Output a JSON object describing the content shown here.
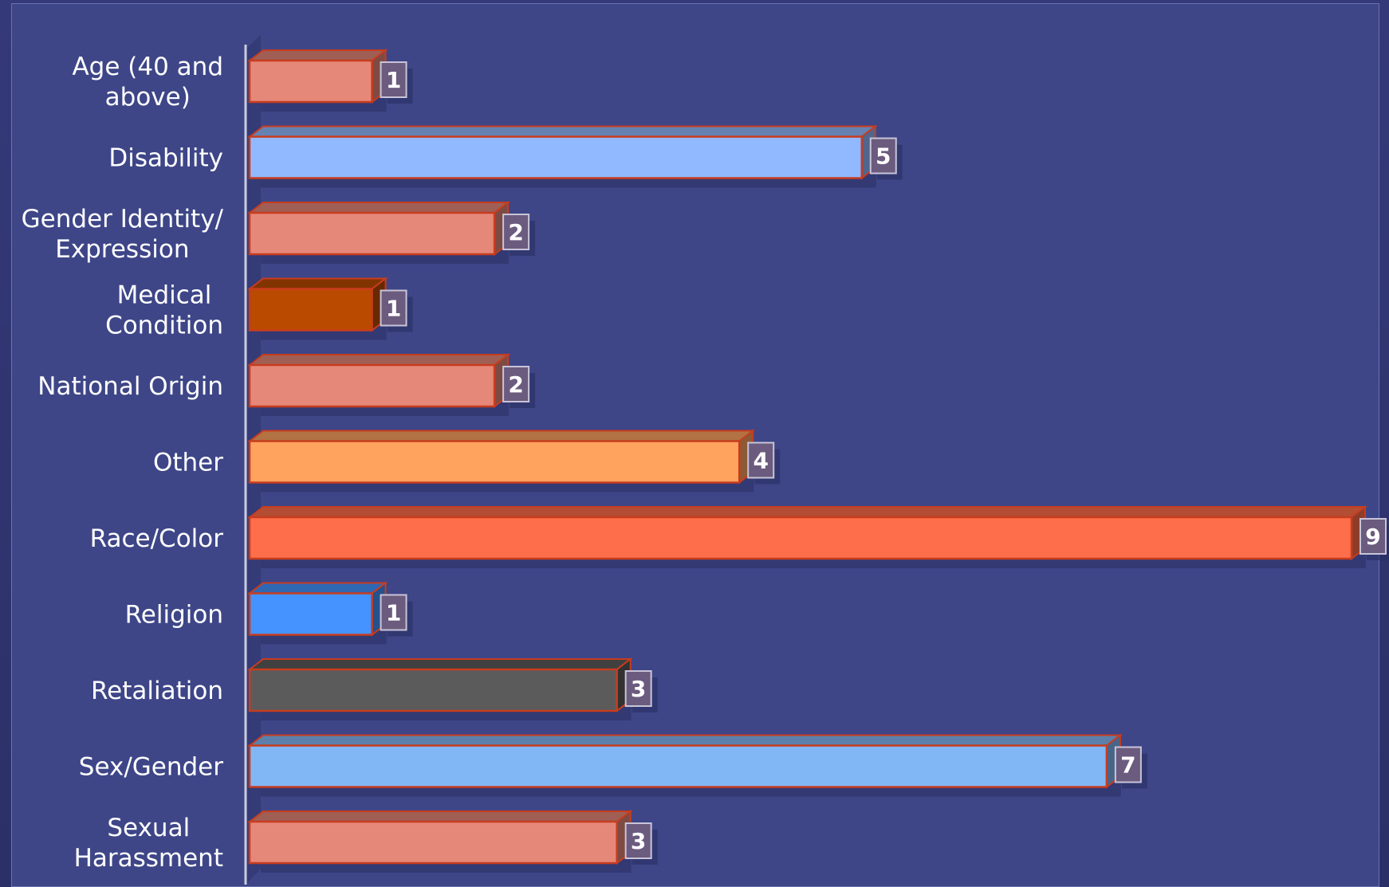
{
  "chart_data": {
    "type": "bar",
    "orientation": "horizontal",
    "style": "3d",
    "categories": [
      "Age (40 and above)",
      "Disability",
      "Gender Identity/ Expression",
      "Medical Condition",
      "National Origin",
      "Other",
      "Race/Color",
      "Religion",
      "Retaliation",
      "Sex/Gender",
      "Sexual Harassment"
    ],
    "category_lines": [
      [
        "Age (40 and",
        "above)"
      ],
      [
        "Disability"
      ],
      [
        "Gender Identity/",
        "Expression"
      ],
      [
        "Medical",
        "Condition"
      ],
      [
        "National Origin"
      ],
      [
        "Other"
      ],
      [
        "Race/Color"
      ],
      [
        "Religion"
      ],
      [
        "Retaliation"
      ],
      [
        "Sex/Gender"
      ],
      [
        "Sexual",
        "Harassment"
      ]
    ],
    "values": [
      1,
      5,
      2,
      1,
      2,
      4,
      9,
      1,
      3,
      7,
      3
    ],
    "value_labels": [
      "1",
      "5",
      "2",
      "1",
      "2",
      "4",
      "9",
      "1",
      "3",
      "7",
      "3"
    ],
    "bar_colors": [
      "#e5887a",
      "#91b9ff",
      "#e5887a",
      "#b94a00",
      "#e5887a",
      "#ffa35f",
      "#ff6e4a",
      "#4593ff",
      "#5b5b5b",
      "#82b7f5",
      "#e5887a"
    ],
    "bar_edge_color": "#c83c1e",
    "xlim": [
      0,
      9
    ],
    "title": "",
    "xlabel": "",
    "ylabel": "",
    "grid": false,
    "legend": "none"
  },
  "colors": {
    "background": "#3e4688",
    "axis_line": "#c9ccdd",
    "text": "#ffffff"
  }
}
